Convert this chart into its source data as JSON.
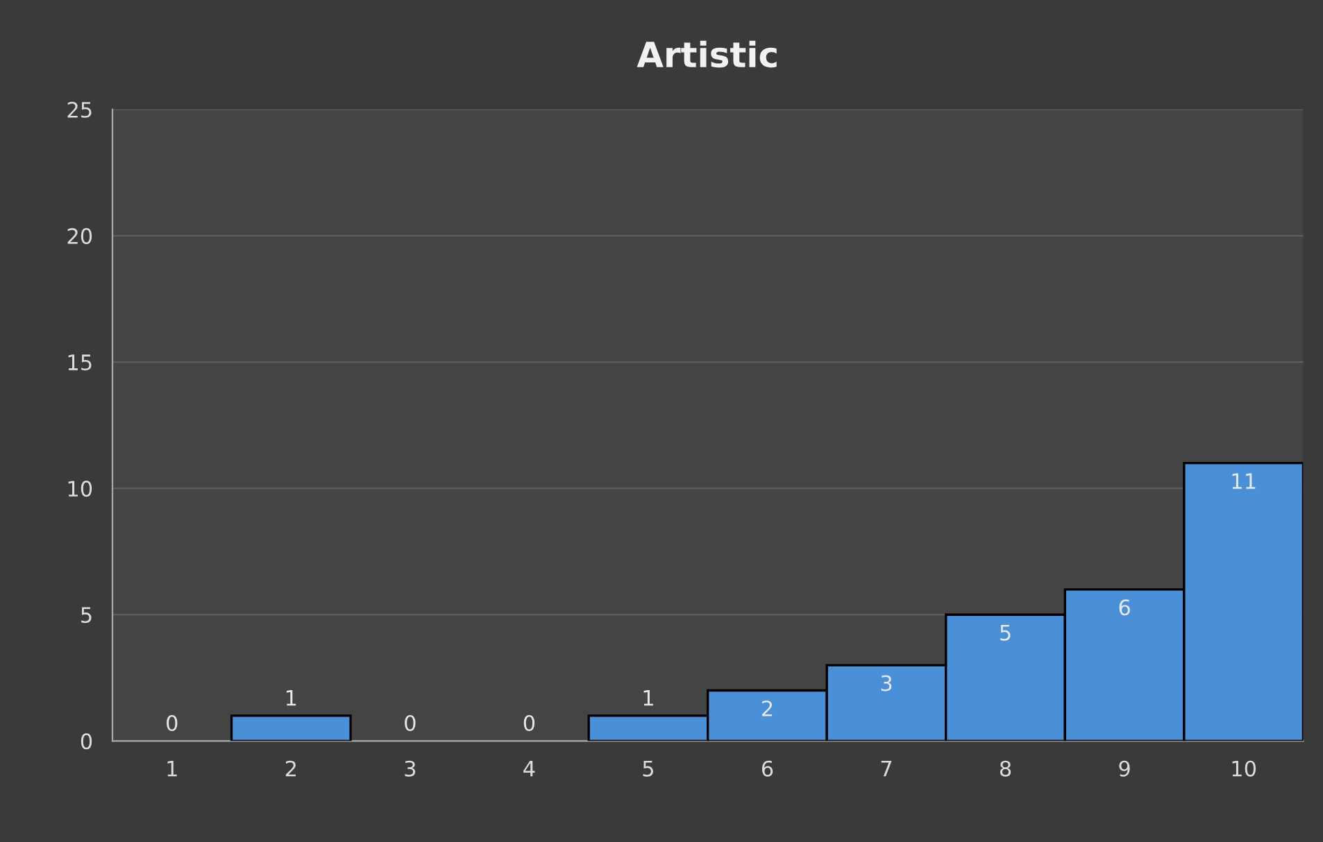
{
  "chart_data": {
    "type": "bar",
    "title": "Artistic",
    "categories": [
      "1",
      "2",
      "3",
      "4",
      "5",
      "6",
      "7",
      "8",
      "9",
      "10"
    ],
    "values": [
      0,
      1,
      0,
      0,
      1,
      2,
      3,
      5,
      6,
      11
    ],
    "color": "#4a90d9",
    "ylim": [
      0,
      25
    ],
    "yticks": [
      0,
      5,
      10,
      15,
      20,
      25
    ],
    "grid": "y",
    "data_labels": true
  }
}
